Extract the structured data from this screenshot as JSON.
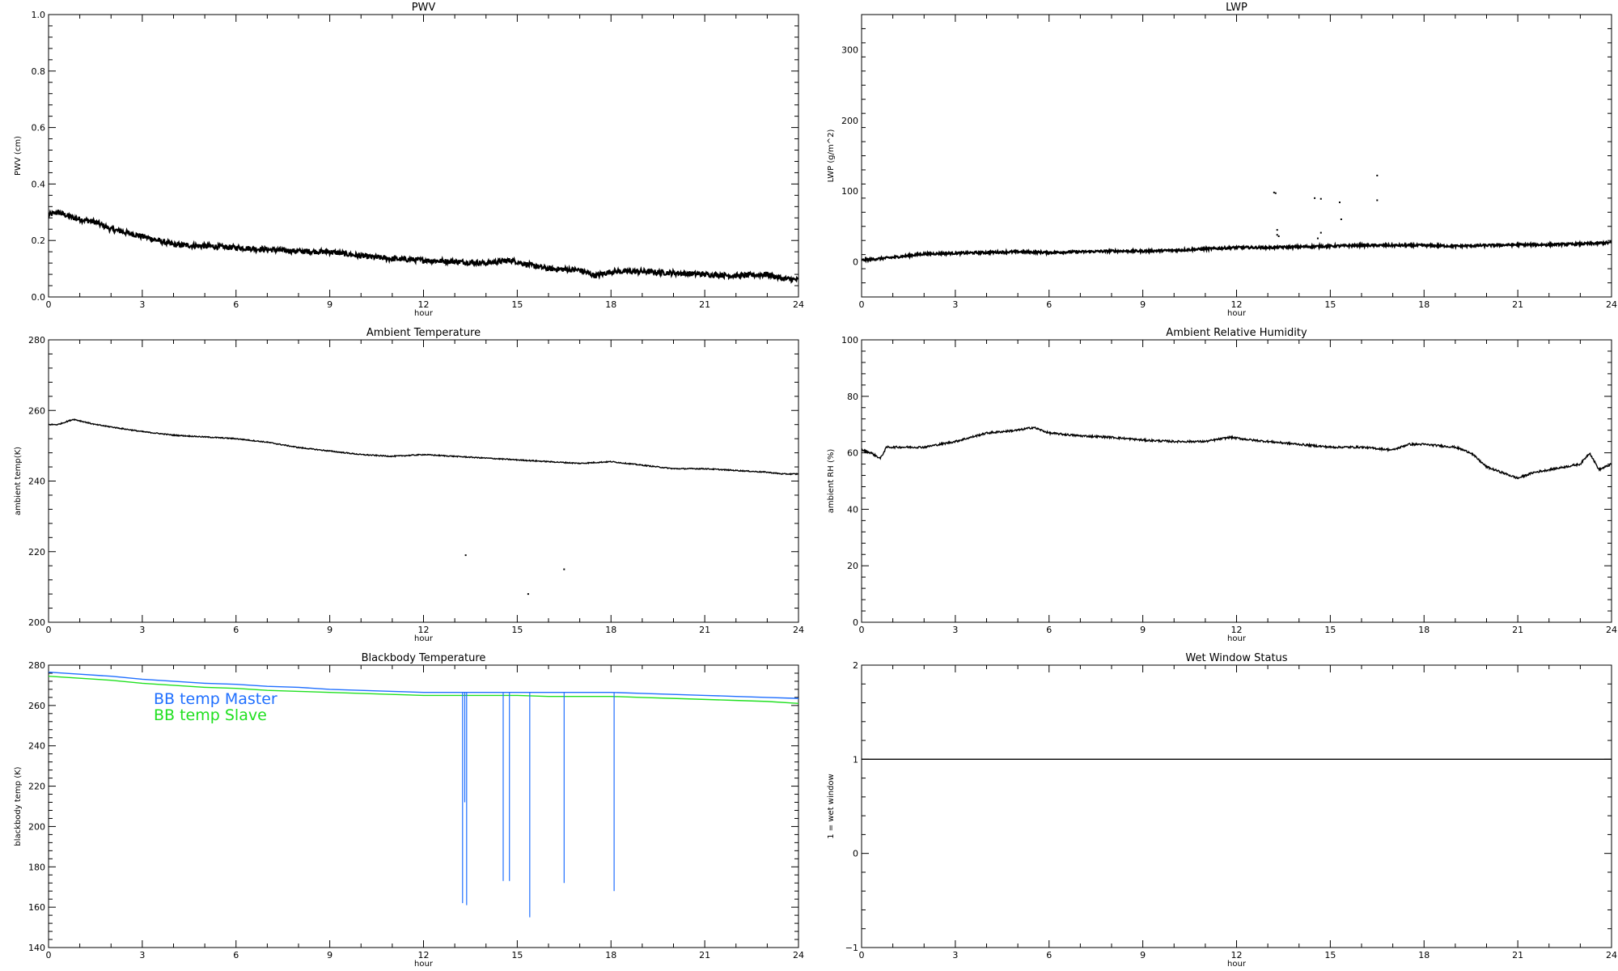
{
  "chart_data": [
    {
      "id": "pwv",
      "type": "line",
      "title": "PWV",
      "xlabel": "hour",
      "ylabel": "PWV (cm)",
      "xlim": [
        0,
        24
      ],
      "ylim": [
        0.0,
        1.0
      ],
      "xticks": [
        0,
        3,
        6,
        9,
        12,
        15,
        18,
        21,
        24
      ],
      "yticks": [
        0.0,
        0.2,
        0.4,
        0.6,
        0.8,
        1.0
      ],
      "ytick_labels": [
        "0.0",
        "0.2",
        "0.4",
        "0.6",
        "0.8",
        "1.0"
      ],
      "noise": 0.009,
      "series": [
        {
          "color": "#000000",
          "x": [
            0,
            0.3,
            0.8,
            1.5,
            2,
            3,
            4,
            5,
            6,
            7,
            8,
            9,
            10,
            11,
            12,
            13,
            14,
            14.8,
            15.5,
            16,
            17,
            17.5,
            18,
            19,
            20,
            21,
            22,
            23,
            23.5,
            24
          ],
          "y": [
            0.29,
            0.3,
            0.28,
            0.265,
            0.24,
            0.215,
            0.185,
            0.18,
            0.175,
            0.168,
            0.162,
            0.16,
            0.145,
            0.135,
            0.13,
            0.125,
            0.12,
            0.13,
            0.11,
            0.1,
            0.095,
            0.075,
            0.09,
            0.09,
            0.085,
            0.08,
            0.075,
            0.08,
            0.065,
            0.06
          ]
        }
      ]
    },
    {
      "id": "lwp",
      "type": "line",
      "title": "LWP",
      "xlabel": "hour",
      "ylabel": "LWP (g/m^2)",
      "xlim": [
        0,
        24
      ],
      "ylim": [
        -50,
        350
      ],
      "xticks": [
        0,
        3,
        6,
        9,
        12,
        15,
        18,
        21,
        24
      ],
      "yticks": [
        0,
        100,
        200,
        300
      ],
      "ytick_labels": [
        "0",
        "100",
        "200",
        "300"
      ],
      "noise": 1.6,
      "series": [
        {
          "color": "#000000",
          "x": [
            0,
            1,
            2,
            3,
            4,
            5,
            6,
            7,
            8,
            9,
            10,
            11,
            12,
            13,
            14,
            15,
            16,
            17,
            18,
            19,
            20,
            21,
            22,
            23,
            24
          ],
          "y": [
            2,
            6,
            11,
            12,
            13,
            14,
            13,
            14,
            15,
            15,
            16,
            18,
            20,
            20,
            21,
            22,
            23,
            23,
            23,
            22,
            23,
            24,
            24,
            25,
            27
          ]
        }
      ],
      "outliers": {
        "x": [
          13.2,
          13.25,
          13.3,
          14.5,
          14.7,
          15.3,
          15.35,
          16.5,
          16.5,
          13.3,
          13.35,
          14.6,
          14.7
        ],
        "y": [
          98,
          97,
          45,
          90,
          89,
          84,
          60,
          122,
          87,
          38,
          36,
          33,
          41
        ]
      }
    },
    {
      "id": "ambient_temp",
      "type": "line",
      "title": "Ambient Temperature",
      "xlabel": "hour",
      "ylabel": "ambient temp(K)",
      "xlim": [
        0,
        24
      ],
      "ylim": [
        200,
        280
      ],
      "xticks": [
        0,
        3,
        6,
        9,
        12,
        15,
        18,
        21,
        24
      ],
      "yticks": [
        200,
        220,
        240,
        260,
        280
      ],
      "ytick_labels": [
        "200",
        "220",
        "240",
        "260",
        "280"
      ],
      "noise": 0.15,
      "series": [
        {
          "color": "#000000",
          "x": [
            0,
            0.3,
            0.8,
            1.5,
            3,
            4,
            5,
            6,
            7,
            8,
            9,
            10,
            11,
            12,
            13,
            14,
            15,
            16,
            17,
            18,
            19,
            20,
            21,
            22,
            23,
            23.5,
            24
          ],
          "y": [
            256,
            256,
            257.5,
            256,
            254,
            253,
            252.5,
            252,
            251,
            249.5,
            248.5,
            247.5,
            247,
            247.5,
            247,
            246.5,
            246,
            245.5,
            245,
            245.5,
            244.5,
            243.5,
            243.5,
            243,
            242.5,
            242,
            242
          ]
        }
      ],
      "outliers": {
        "x": [
          13.35,
          15.35,
          16.5
        ],
        "y": [
          219,
          208,
          215
        ]
      }
    },
    {
      "id": "ambient_rh",
      "type": "line",
      "title": "Ambient Relative Humidity",
      "xlabel": "hour",
      "ylabel": "ambient RH (%)",
      "xlim": [
        0,
        24
      ],
      "ylim": [
        0,
        100
      ],
      "xticks": [
        0,
        3,
        6,
        9,
        12,
        15,
        18,
        21,
        24
      ],
      "yticks": [
        0,
        20,
        40,
        60,
        80,
        100
      ],
      "ytick_labels": [
        "0",
        "20",
        "40",
        "60",
        "80",
        "100"
      ],
      "noise": 0.35,
      "series": [
        {
          "color": "#000000",
          "x": [
            0,
            0.3,
            0.6,
            0.8,
            1,
            1.5,
            2,
            2.5,
            3,
            4,
            5,
            5.5,
            6,
            7,
            8,
            9,
            10,
            11,
            11.8,
            12.5,
            13,
            14,
            15,
            16,
            17,
            17.5,
            18,
            19,
            19.5,
            20,
            20.5,
            21,
            21.5,
            22,
            22.5,
            23,
            23.3,
            23.6,
            24
          ],
          "y": [
            61,
            60,
            58,
            62,
            62,
            62,
            62,
            63,
            64,
            67,
            68,
            69,
            67,
            66,
            65.5,
            64.5,
            64,
            64,
            65.5,
            64.5,
            64,
            63,
            62,
            62,
            61,
            63,
            63,
            62,
            60,
            55,
            53,
            51,
            53,
            54,
            55,
            56,
            60,
            54,
            56
          ]
        }
      ]
    },
    {
      "id": "bb_temp",
      "type": "line",
      "title": "Blackbody Temperature",
      "xlabel": "hour",
      "ylabel": "blackbody temp (K)",
      "xlim": [
        0,
        24
      ],
      "ylim": [
        140,
        280
      ],
      "xticks": [
        0,
        3,
        6,
        9,
        12,
        15,
        18,
        21,
        24
      ],
      "yticks": [
        140,
        160,
        180,
        200,
        220,
        240,
        260,
        280
      ],
      "ytick_labels": [
        "140",
        "160",
        "180",
        "200",
        "220",
        "240",
        "260",
        "280"
      ],
      "noise": 0,
      "legend": [
        {
          "name": "BB temp Master",
          "color": "#1f6fff"
        },
        {
          "name": "BB temp Slave",
          "color": "#20e020"
        }
      ],
      "series": [
        {
          "name": "BB temp Master",
          "color": "#1f6fff",
          "x": [
            0,
            1,
            2,
            3,
            4,
            5,
            6,
            7,
            8,
            9,
            10,
            11,
            12,
            13,
            14,
            15,
            16,
            17,
            18,
            19,
            20,
            21,
            22,
            23,
            24
          ],
          "y": [
            276.5,
            275.5,
            274.5,
            273,
            272,
            271,
            270.5,
            269.5,
            269,
            268,
            267.5,
            267,
            266.5,
            266.5,
            266.5,
            266.5,
            266.5,
            266.5,
            266.5,
            266,
            265.5,
            265,
            264.5,
            264,
            263.5
          ]
        },
        {
          "name": "BB temp Slave",
          "color": "#20e020",
          "x": [
            0,
            1,
            2,
            3,
            4,
            5,
            6,
            7,
            8,
            9,
            10,
            11,
            12,
            13,
            14,
            15,
            16,
            17,
            18,
            19,
            20,
            21,
            22,
            23,
            24
          ],
          "y": [
            274.5,
            273.5,
            272.5,
            271,
            270,
            269,
            268.5,
            267.5,
            267,
            266.5,
            266,
            265.5,
            265,
            265,
            265,
            265,
            264.5,
            264.5,
            264.5,
            264,
            263.5,
            263,
            262.5,
            262,
            261
          ]
        }
      ],
      "spikes": {
        "color": "#1f6fff",
        "x": [
          13.25,
          13.32,
          13.38,
          14.55,
          14.75,
          15.4,
          16.5,
          18.1
        ],
        "y": [
          162,
          212,
          161,
          173,
          173,
          155,
          172,
          168
        ]
      }
    },
    {
      "id": "wet_window",
      "type": "line",
      "title": "Wet Window Status",
      "xlabel": "hour",
      "ylabel": "1 = wet window",
      "xlim": [
        0,
        24
      ],
      "ylim": [
        -1,
        2
      ],
      "xticks": [
        0,
        3,
        6,
        9,
        12,
        15,
        18,
        21,
        24
      ],
      "yticks": [
        -1,
        0,
        1,
        2
      ],
      "ytick_labels": [
        "−1",
        "0",
        "1",
        "2"
      ],
      "noise": 0,
      "series": [
        {
          "color": "#000000",
          "x": [
            0,
            24
          ],
          "y": [
            1,
            1
          ]
        }
      ]
    }
  ]
}
